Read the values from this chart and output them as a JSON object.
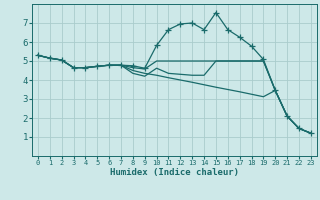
{
  "xlabel": "Humidex (Indice chaleur)",
  "xlim": [
    -0.5,
    23.5
  ],
  "ylim": [
    0,
    8
  ],
  "xticks": [
    0,
    1,
    2,
    3,
    4,
    5,
    6,
    7,
    8,
    9,
    10,
    11,
    12,
    13,
    14,
    15,
    16,
    17,
    18,
    19,
    20,
    21,
    22,
    23
  ],
  "yticks": [
    1,
    2,
    3,
    4,
    5,
    6,
    7
  ],
  "bg_color": "#cde8e8",
  "grid_color": "#aacccc",
  "line_color": "#1a6b6b",
  "lines": [
    {
      "x": [
        0,
        1,
        2,
        3,
        4,
        5,
        6,
        7,
        8,
        9,
        10,
        11,
        12,
        13,
        14,
        15,
        16,
        17,
        18,
        19,
        20,
        21,
        22,
        23
      ],
      "y": [
        5.3,
        5.15,
        5.05,
        4.65,
        4.65,
        4.72,
        4.78,
        4.78,
        4.75,
        4.62,
        5.82,
        6.65,
        6.95,
        7.0,
        6.65,
        7.55,
        6.65,
        6.25,
        5.78,
        5.08,
        3.45,
        2.1,
        1.45,
        1.2
      ],
      "markers": true
    },
    {
      "x": [
        0,
        1,
        2,
        3,
        4,
        5,
        6,
        7,
        8,
        9,
        10,
        11,
        12,
        13,
        14,
        15,
        16,
        17,
        18,
        19,
        20,
        21,
        22,
        23
      ],
      "y": [
        5.3,
        5.15,
        5.05,
        4.65,
        4.65,
        4.72,
        4.78,
        4.78,
        4.65,
        4.58,
        5.0,
        5.0,
        5.0,
        5.0,
        5.0,
        5.0,
        5.0,
        5.0,
        5.0,
        5.0,
        3.45,
        2.1,
        1.45,
        1.2
      ],
      "markers": false
    },
    {
      "x": [
        0,
        1,
        2,
        3,
        4,
        5,
        6,
        7,
        8,
        9,
        10,
        11,
        12,
        13,
        14,
        15,
        16,
        17,
        18,
        19,
        20,
        21,
        22,
        23
      ],
      "y": [
        5.3,
        5.15,
        5.05,
        4.65,
        4.65,
        4.72,
        4.78,
        4.78,
        4.5,
        4.35,
        4.25,
        4.12,
        4.0,
        3.88,
        3.75,
        3.62,
        3.5,
        3.38,
        3.25,
        3.12,
        3.45,
        2.1,
        1.45,
        1.2
      ],
      "markers": false
    },
    {
      "x": [
        0,
        1,
        2,
        3,
        4,
        5,
        6,
        7,
        8,
        9,
        10,
        11,
        12,
        13,
        14,
        15,
        16,
        17,
        18,
        19,
        20,
        21,
        22,
        23
      ],
      "y": [
        5.3,
        5.15,
        5.05,
        4.65,
        4.65,
        4.72,
        4.78,
        4.78,
        4.35,
        4.2,
        4.62,
        4.35,
        4.3,
        4.25,
        4.25,
        5.0,
        5.0,
        5.0,
        5.0,
        5.0,
        3.45,
        2.1,
        1.45,
        1.2
      ],
      "markers": false
    }
  ]
}
